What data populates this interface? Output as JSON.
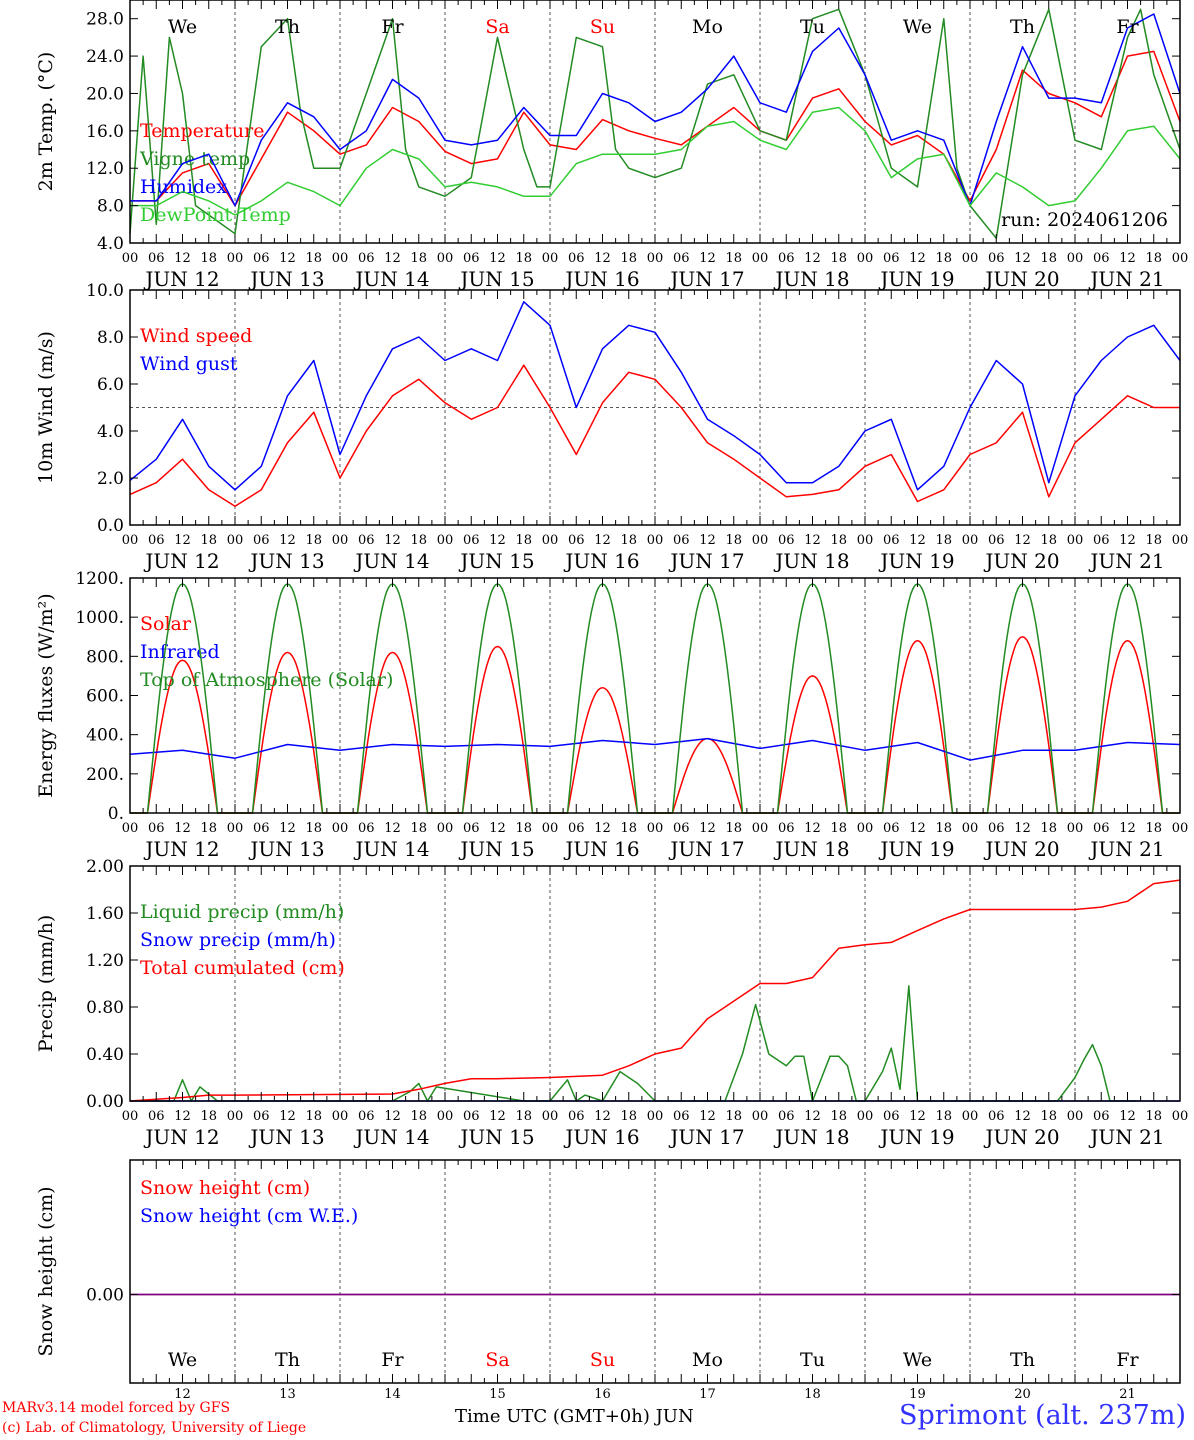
{
  "colors": {
    "red": "#ff0000",
    "green": "#228b22",
    "blue": "#0000ff",
    "light_green": "#32cd32",
    "purple": "#800080",
    "axis": "#000000",
    "grid": "#555555",
    "station": "#3333ff"
  },
  "footer": {
    "credit_line1": "MARv3.14 model forced by GFS",
    "credit_line2": "(c) Lab. of Climatology, University of Liege",
    "x_title": "Time UTC (GMT+0h) JUN",
    "station": "Sprimont (alt. 237m)"
  },
  "chart_data": [
    {
      "type": "line",
      "id": "temperature",
      "ylabel": "2m Temp. (°C)",
      "ylim": [
        4.0,
        30.0
      ],
      "yticks": [
        "4.0",
        "8.0",
        "12.0",
        "16.0",
        "20.0",
        "24.0",
        "28.0"
      ],
      "ytick_values": [
        4,
        8,
        12,
        16,
        20,
        24,
        28
      ],
      "xlim": [
        0,
        240
      ],
      "days": [
        "JUN 12",
        "JUN 13",
        "JUN 14",
        "JUN 15",
        "JUN 16",
        "JUN 17",
        "JUN 18",
        "JUN 19",
        "JUN 20",
        "JUN 21"
      ],
      "hour_ticks": [
        "00",
        "06",
        "12",
        "18"
      ],
      "weekdays": [
        {
          "label": "We",
          "color": "#000000"
        },
        {
          "label": "Th",
          "color": "#000000"
        },
        {
          "label": "Fr",
          "color": "#000000"
        },
        {
          "label": "Sa",
          "color": "#ff0000"
        },
        {
          "label": "Su",
          "color": "#ff0000"
        },
        {
          "label": "Mo",
          "color": "#000000"
        },
        {
          "label": "Tu",
          "color": "#000000"
        },
        {
          "label": "We",
          "color": "#000000"
        },
        {
          "label": "Th",
          "color": "#000000"
        },
        {
          "label": "Fr",
          "color": "#000000"
        }
      ],
      "annotation": "run: 2024061206",
      "series": [
        {
          "name": "Temperature",
          "color": "#ff0000",
          "x": [
            0,
            6,
            12,
            18,
            24,
            30,
            36,
            42,
            48,
            54,
            60,
            66,
            72,
            78,
            84,
            90,
            96,
            102,
            108,
            114,
            120,
            126,
            132,
            138,
            144,
            150,
            156,
            162,
            168,
            174,
            180,
            186,
            192,
            198,
            204,
            210,
            216,
            222,
            228,
            234,
            240
          ],
          "y": [
            8.5,
            8.5,
            11.5,
            12.5,
            8.0,
            13.0,
            18.0,
            16.0,
            13.5,
            14.5,
            18.5,
            17.0,
            13.8,
            12.5,
            13.0,
            18.0,
            14.5,
            14.0,
            17.2,
            16.0,
            15.2,
            14.5,
            16.5,
            18.5,
            16.0,
            15.0,
            19.5,
            20.5,
            17.0,
            14.5,
            15.5,
            13.5,
            8.5,
            14.0,
            22.5,
            20.0,
            19.0,
            17.5,
            24.0,
            24.5,
            17.0
          ]
        },
        {
          "name": "Vigne temp",
          "color": "#228b22",
          "x": [
            0,
            3,
            6,
            9,
            12,
            15,
            18,
            24,
            30,
            36,
            39,
            42,
            48,
            54,
            60,
            63,
            66,
            72,
            78,
            84,
            87,
            90,
            93,
            96,
            102,
            108,
            111,
            114,
            120,
            126,
            132,
            138,
            144,
            150,
            156,
            162,
            168,
            174,
            180,
            186,
            189,
            192,
            198,
            204,
            210,
            216,
            222,
            228,
            231,
            234,
            240
          ],
          "y": [
            5.0,
            24.0,
            6.0,
            26.0,
            20.0,
            8.0,
            7.0,
            5.0,
            25.0,
            28.0,
            18.0,
            12.0,
            12.0,
            20.0,
            28.0,
            14.0,
            10.0,
            9.0,
            11.0,
            26.0,
            20.0,
            14.0,
            10.0,
            10.0,
            26.0,
            25.0,
            14.0,
            12.0,
            11.0,
            12.0,
            21.0,
            22.0,
            16.0,
            15.0,
            28.0,
            29.0,
            22.0,
            12.0,
            10.0,
            28.0,
            12.0,
            8.0,
            4.5,
            22.0,
            29.0,
            15.0,
            14.0,
            26.0,
            29.0,
            22.0,
            14.0
          ]
        },
        {
          "name": "Humidex",
          "color": "#0000ff",
          "x": [
            0,
            6,
            12,
            18,
            24,
            30,
            36,
            42,
            48,
            54,
            60,
            66,
            72,
            78,
            84,
            90,
            96,
            102,
            108,
            114,
            120,
            126,
            132,
            138,
            144,
            150,
            156,
            162,
            168,
            174,
            180,
            186,
            192,
            198,
            204,
            210,
            216,
            222,
            228,
            234,
            240
          ],
          "y": [
            8.5,
            8.5,
            12.5,
            13.5,
            8.0,
            15.0,
            19.0,
            17.5,
            14.0,
            16.0,
            21.5,
            19.5,
            15.0,
            14.5,
            15.0,
            18.5,
            15.5,
            15.5,
            20.0,
            19.0,
            17.0,
            18.0,
            20.5,
            24.0,
            19.0,
            18.0,
            24.5,
            27.0,
            22.0,
            15.0,
            16.0,
            15.0,
            8.0,
            17.0,
            25.0,
            19.5,
            19.5,
            19.0,
            27.0,
            28.5,
            20.0
          ]
        },
        {
          "name": "DewPoint Temp",
          "color": "#32cd32",
          "x": [
            0,
            6,
            12,
            18,
            24,
            30,
            36,
            42,
            48,
            54,
            60,
            66,
            72,
            78,
            84,
            90,
            96,
            102,
            108,
            114,
            120,
            126,
            132,
            138,
            144,
            150,
            156,
            162,
            168,
            174,
            180,
            186,
            192,
            198,
            204,
            210,
            216,
            222,
            228,
            234,
            240
          ],
          "y": [
            8.0,
            8.0,
            9.5,
            8.5,
            7.0,
            8.5,
            10.5,
            9.5,
            8.0,
            12.0,
            14.0,
            13.0,
            10.0,
            10.5,
            10.0,
            9.0,
            9.0,
            12.5,
            13.5,
            13.5,
            13.5,
            14.0,
            16.5,
            17.0,
            15.0,
            14.0,
            18.0,
            18.5,
            16.0,
            11.0,
            13.0,
            13.5,
            8.0,
            11.5,
            10.0,
            8.0,
            8.5,
            12.0,
            16.0,
            16.5,
            13.0
          ]
        }
      ]
    },
    {
      "type": "line",
      "id": "wind",
      "ylabel": "10m Wind (m/s)",
      "ylim": [
        0.0,
        10.0
      ],
      "yticks": [
        "0.0",
        "2.0",
        "4.0",
        "6.0",
        "8.0",
        "10.0"
      ],
      "ytick_values": [
        0,
        2,
        4,
        6,
        8,
        10
      ],
      "xlim": [
        0,
        240
      ],
      "reference_line": 5.0,
      "series": [
        {
          "name": "Wind speed",
          "color": "#ff0000",
          "x": [
            0,
            6,
            12,
            18,
            24,
            30,
            36,
            42,
            48,
            54,
            60,
            66,
            72,
            78,
            84,
            90,
            96,
            102,
            108,
            114,
            120,
            126,
            132,
            138,
            144,
            150,
            156,
            162,
            168,
            174,
            180,
            186,
            192,
            198,
            204,
            210,
            216,
            222,
            228,
            234,
            240
          ],
          "y": [
            1.3,
            1.8,
            2.8,
            1.5,
            0.8,
            1.5,
            3.5,
            4.8,
            2.0,
            4.0,
            5.5,
            6.2,
            5.2,
            4.5,
            5.0,
            6.8,
            5.0,
            3.0,
            5.2,
            6.5,
            6.2,
            5.0,
            3.5,
            2.8,
            2.0,
            1.2,
            1.3,
            1.5,
            2.5,
            3.0,
            1.0,
            1.5,
            3.0,
            3.5,
            4.8,
            1.2,
            3.5,
            4.5,
            5.5,
            5.0,
            5.0
          ]
        },
        {
          "name": "Wind gust",
          "color": "#0000ff",
          "x": [
            0,
            6,
            12,
            18,
            24,
            30,
            36,
            42,
            48,
            54,
            60,
            66,
            72,
            78,
            84,
            90,
            96,
            102,
            108,
            114,
            120,
            126,
            132,
            138,
            144,
            150,
            156,
            162,
            168,
            174,
            180,
            186,
            192,
            198,
            204,
            210,
            216,
            222,
            228,
            234,
            240
          ],
          "y": [
            1.9,
            2.8,
            4.5,
            2.5,
            1.5,
            2.5,
            5.5,
            7.0,
            3.0,
            5.5,
            7.5,
            8.0,
            7.0,
            7.5,
            7.0,
            9.5,
            8.5,
            5.0,
            7.5,
            8.5,
            8.2,
            6.5,
            4.5,
            3.8,
            3.0,
            1.8,
            1.8,
            2.5,
            4.0,
            4.5,
            1.5,
            2.5,
            5.0,
            7.0,
            6.0,
            1.8,
            5.5,
            7.0,
            8.0,
            8.5,
            7.0
          ]
        }
      ]
    },
    {
      "type": "line",
      "id": "energy",
      "ylabel": "Energy fluxes (W/m²)",
      "ylim": [
        0,
        1200
      ],
      "yticks": [
        "0.",
        "200.",
        "400.",
        "600.",
        "800.",
        "1000.",
        "1200."
      ],
      "ytick_values": [
        0,
        200,
        400,
        600,
        800,
        1000,
        1200
      ],
      "xlim": [
        0,
        240
      ],
      "series": [
        {
          "name": "Solar",
          "color": "#ff0000",
          "daily_peaks": [
            780,
            820,
            820,
            850,
            640,
            380,
            700,
            880,
            900,
            880
          ]
        },
        {
          "name": "Infrared",
          "color": "#0000ff",
          "x": [
            0,
            12,
            24,
            36,
            48,
            60,
            72,
            84,
            96,
            108,
            120,
            132,
            144,
            156,
            168,
            180,
            192,
            204,
            216,
            228,
            240
          ],
          "y": [
            300,
            320,
            280,
            350,
            320,
            350,
            340,
            350,
            340,
            370,
            350,
            380,
            330,
            370,
            320,
            360,
            270,
            320,
            320,
            360,
            350
          ]
        },
        {
          "name": "Top of Atmosphere (Solar)",
          "color": "#228b22",
          "daily_peaks": [
            1170,
            1170,
            1170,
            1170,
            1170,
            1170,
            1170,
            1170,
            1170,
            1170
          ]
        }
      ]
    },
    {
      "type": "line",
      "id": "precip",
      "ylabel": "Precip (mm/h)",
      "ylim": [
        0.0,
        2.0
      ],
      "yticks": [
        "0.00",
        "0.40",
        "0.80",
        "1.20",
        "1.60",
        "2.00"
      ],
      "ytick_values": [
        0,
        0.4,
        0.8,
        1.2,
        1.6,
        2.0
      ],
      "xlim": [
        0,
        240
      ],
      "series": [
        {
          "name": "Liquid precip (mm/h)",
          "color": "#228b22",
          "x": [
            0,
            10,
            12,
            14,
            16,
            20,
            60,
            64,
            66,
            68,
            70,
            90,
            96,
            100,
            102,
            104,
            108,
            112,
            116,
            120,
            136,
            140,
            143,
            146,
            150,
            152,
            154,
            156,
            160,
            162,
            164,
            166,
            168,
            172,
            174,
            176,
            178,
            180,
            184,
            186,
            188,
            190,
            192,
            206,
            210,
            212,
            214,
            216,
            218,
            220,
            222,
            224,
            230
          ],
          "y": [
            0,
            0,
            0.18,
            0.0,
            0.12,
            0,
            0,
            0.08,
            0.15,
            0.0,
            0.12,
            0,
            0,
            0.18,
            0.0,
            0.05,
            0.0,
            0.25,
            0.15,
            0,
            0,
            0.4,
            0.82,
            0.4,
            0.3,
            0.38,
            0.38,
            0.0,
            0.38,
            0.38,
            0.3,
            0.0,
            0,
            0.25,
            0.45,
            0.1,
            0.98,
            0.0,
            0,
            0,
            0,
            0,
            0,
            0,
            0,
            0,
            0.1,
            0.2,
            0.35,
            0.48,
            0.3,
            0.0,
            0
          ]
        },
        {
          "name": "Snow precip (mm/h)",
          "color": "#0000ff",
          "x": [
            0,
            240
          ],
          "y": [
            0,
            0
          ]
        },
        {
          "name": "Total cumulated (cm)",
          "color": "#ff0000",
          "x": [
            0,
            12,
            18,
            24,
            60,
            66,
            72,
            78,
            84,
            96,
            108,
            114,
            120,
            126,
            132,
            138,
            144,
            150,
            156,
            162,
            168,
            174,
            180,
            186,
            192,
            216,
            222,
            228,
            234,
            240
          ],
          "y": [
            0,
            0.03,
            0.05,
            0.05,
            0.06,
            0.1,
            0.15,
            0.19,
            0.19,
            0.2,
            0.22,
            0.3,
            0.4,
            0.45,
            0.7,
            0.85,
            1.0,
            1.0,
            1.05,
            1.3,
            1.33,
            1.35,
            1.45,
            1.55,
            1.63,
            1.63,
            1.65,
            1.7,
            1.85,
            1.88
          ]
        }
      ]
    },
    {
      "type": "line",
      "id": "snow",
      "ylabel": "Snow height (cm)",
      "yticks": [
        "0.00"
      ],
      "ytick_values": [
        0
      ],
      "xlim": [
        0,
        240
      ],
      "day_numbers": [
        "12",
        "13",
        "14",
        "15",
        "16",
        "17",
        "18",
        "19",
        "20",
        "21"
      ],
      "series": [
        {
          "name": "Snow height (cm)",
          "color": "#ff0000",
          "x": [
            0,
            240
          ],
          "y": [
            0,
            0
          ]
        },
        {
          "name": "Snow height (cm W.E.)",
          "color": "#0000ff",
          "x": [
            0,
            240
          ],
          "y": [
            0,
            0
          ]
        }
      ]
    }
  ]
}
